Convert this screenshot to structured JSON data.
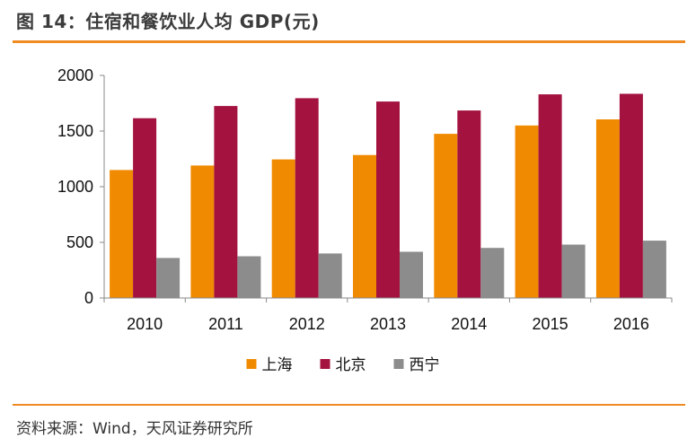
{
  "figure": {
    "title": "图 14：住宿和餐饮业人均 GDP(元)",
    "source": "资料来源：Wind，天风证券研究所"
  },
  "chart_data": {
    "type": "bar",
    "title": "图 14：住宿和餐饮业人均 GDP(元)",
    "xlabel": "",
    "ylabel": "",
    "categories": [
      "2010",
      "2011",
      "2012",
      "2013",
      "2014",
      "2015",
      "2016"
    ],
    "series": [
      {
        "name": "上海",
        "color": "#f08a00",
        "values": [
          1150,
          1190,
          1245,
          1285,
          1475,
          1550,
          1605
        ]
      },
      {
        "name": "北京",
        "color": "#a4123f",
        "values": [
          1615,
          1725,
          1795,
          1765,
          1685,
          1830,
          1835
        ]
      },
      {
        "name": "西宁",
        "color": "#8c8c8c",
        "values": [
          360,
          375,
          400,
          415,
          450,
          480,
          515
        ]
      }
    ],
    "ylim": [
      0,
      2000
    ],
    "yticks": [
      0,
      500,
      1000,
      1500,
      2000
    ],
    "grid": false,
    "legend_position": "bottom"
  }
}
